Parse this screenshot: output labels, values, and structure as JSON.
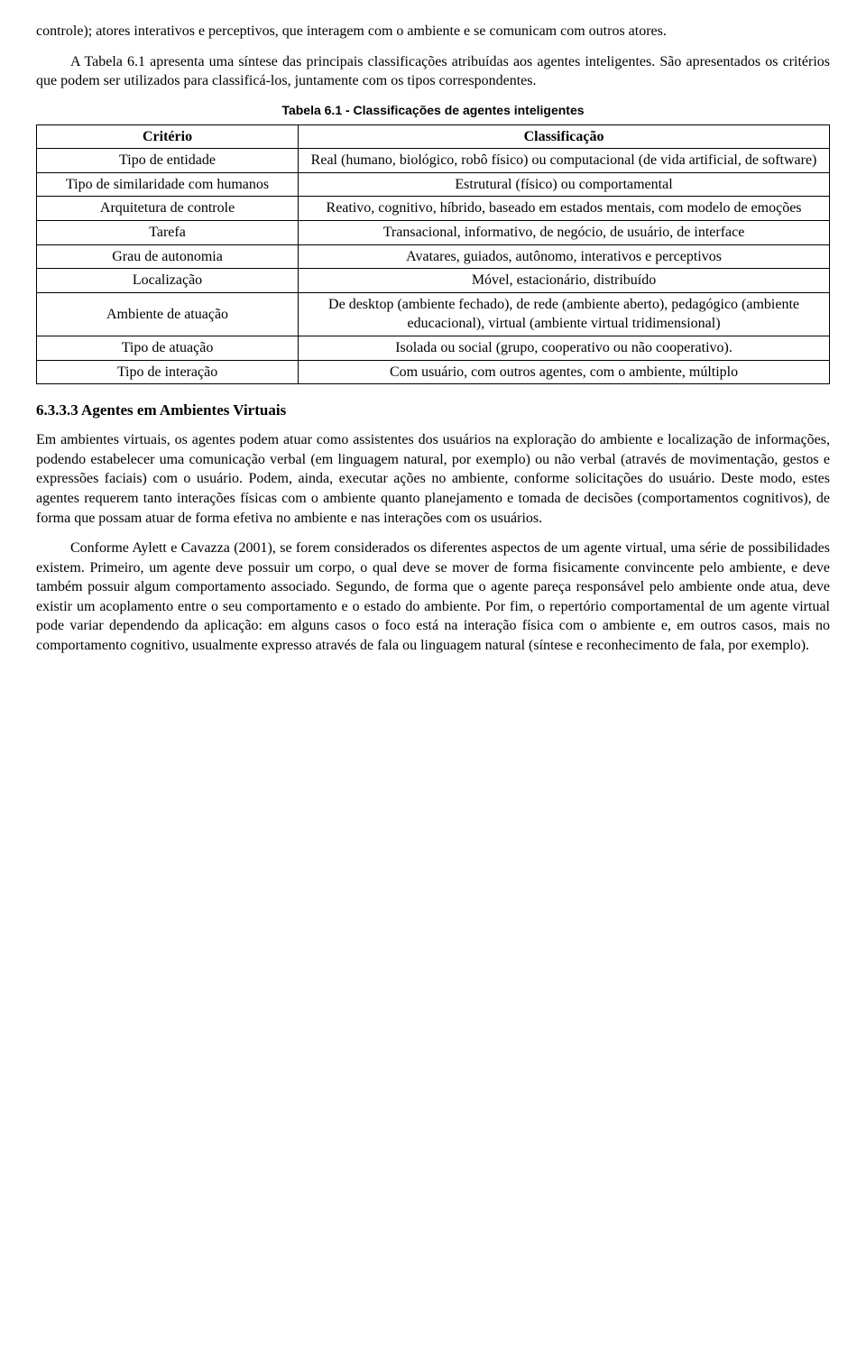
{
  "para1": "controle); atores interativos e perceptivos, que interagem com o ambiente e se comunicam com outros atores.",
  "para2": "A Tabela 6.1 apresenta uma síntese das principais classificações atribuídas aos agentes inteligentes. São apresentados os critérios que podem ser utilizados para classificá-los, juntamente com os tipos correspondentes.",
  "tableCaption": "Tabela 6.1 - Classificações de agentes inteligentes",
  "table": {
    "headers": {
      "left": "Critério",
      "right": "Classificação"
    },
    "rows": [
      {
        "left": "Tipo de entidade",
        "right": "Real (humano, biológico, robô físico) ou computacional (de vida artificial, de software)"
      },
      {
        "left": "Tipo de similaridade com humanos",
        "right": "Estrutural (físico) ou comportamental"
      },
      {
        "left": "Arquitetura de controle",
        "right": "Reativo, cognitivo, híbrido, baseado em estados mentais, com modelo de emoções"
      },
      {
        "left": "Tarefa",
        "right": "Transacional, informativo, de negócio, de usuário, de interface"
      },
      {
        "left": "Grau de autonomia",
        "right": "Avatares, guiados, autônomo, interativos e perceptivos"
      },
      {
        "left": "Localização",
        "right": "Móvel, estacionário, distribuído"
      },
      {
        "left": "Ambiente de atuação",
        "right": "De desktop (ambiente fechado), de rede (ambiente aberto), pedagógico (ambiente educacional), virtual (ambiente virtual tridimensional)"
      },
      {
        "left": "Tipo de atuação",
        "right": "Isolada ou social (grupo, cooperativo ou não cooperativo)."
      },
      {
        "left": "Tipo de interação",
        "right": "Com usuário, com outros agentes, com o ambiente, múltiplo"
      }
    ]
  },
  "sectionHeading": "6.3.3.3 Agentes em Ambientes Virtuais",
  "para3": "Em ambientes virtuais, os agentes podem atuar como assistentes dos usuários na exploração do ambiente e localização de informações, podendo estabelecer uma comunicação verbal (em linguagem natural, por exemplo) ou não verbal (através de movimentação, gestos e expressões faciais) com o usuário. Podem, ainda, executar ações no ambiente, conforme solicitações do usuário. Deste modo, estes agentes requerem tanto interações físicas com o ambiente quanto planejamento e tomada de decisões (comportamentos cognitivos), de forma que possam atuar de forma efetiva no ambiente e nas interações com os usuários.",
  "para4": "Conforme Aylett e Cavazza (2001), se forem considerados os diferentes aspectos de um agente virtual, uma série de possibilidades existem. Primeiro, um agente deve possuir um corpo, o qual deve se mover de forma fisicamente convincente pelo ambiente, e deve também possuir algum comportamento associado. Segundo, de forma que o agente pareça responsável pelo ambiente onde atua,  deve existir um acoplamento entre o seu comportamento e o estado do ambiente. Por fim, o repertório comportamental de um agente virtual pode variar dependendo da aplicação: em alguns casos o foco está na interação física com o ambiente e, em outros casos, mais no comportamento cognitivo, usualmente expresso através de fala ou linguagem natural (síntese e reconhecimento de fala, por exemplo)."
}
